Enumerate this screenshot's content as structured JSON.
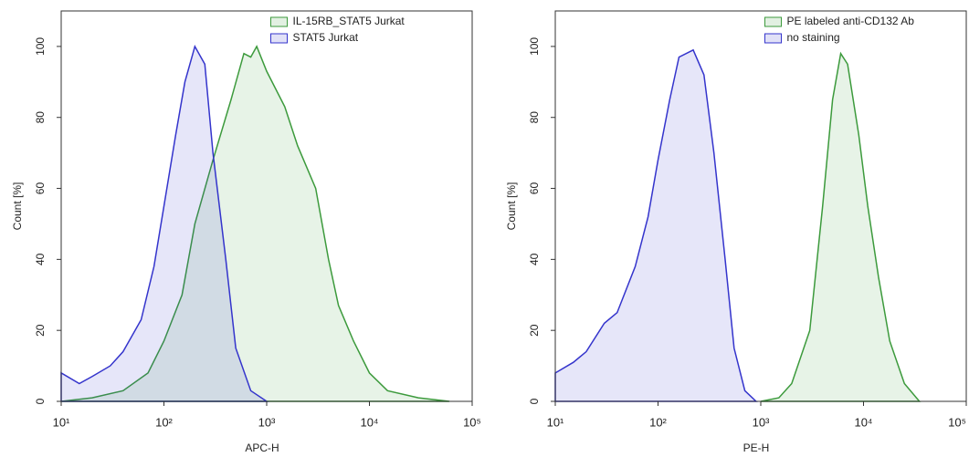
{
  "chart_data": [
    {
      "type": "area",
      "x_label": "APC-H",
      "y_label": "Count [%]",
      "xscale": "log",
      "xlim": [
        10,
        100000
      ],
      "ylim": [
        0,
        110
      ],
      "xticks": [
        {
          "value": 10,
          "label": "10¹"
        },
        {
          "value": 100,
          "label": "10²"
        },
        {
          "value": 1000,
          "label": "10³"
        },
        {
          "value": 10000,
          "label": "10⁴"
        },
        {
          "value": 100000,
          "label": "10⁵"
        }
      ],
      "yticks": [
        0,
        20,
        40,
        60,
        80,
        100
      ],
      "legend": "top-right",
      "series": [
        {
          "name": "IL-15RB_STAT5 Jurkat",
          "color": "#3c9a3c",
          "x": [
            10,
            20,
            40,
            70,
            100,
            150,
            200,
            300,
            450,
            600,
            700,
            800,
            1000,
            1500,
            2000,
            3000,
            4000,
            5000,
            7000,
            10000,
            15000,
            30000,
            60000
          ],
          "values": [
            0,
            1,
            3,
            8,
            17,
            30,
            50,
            68,
            85,
            98,
            97,
            100,
            93,
            83,
            72,
            60,
            40,
            27,
            17,
            8,
            3,
            1,
            0
          ]
        },
        {
          "name": "STAT5 Jurkat",
          "color": "#3434cc",
          "x": [
            10,
            15,
            20,
            30,
            40,
            60,
            80,
            100,
            130,
            160,
            200,
            250,
            300,
            400,
            500,
            700,
            1000
          ],
          "values": [
            8,
            5,
            7,
            10,
            14,
            23,
            38,
            55,
            75,
            90,
            100,
            95,
            70,
            40,
            15,
            3,
            0
          ]
        }
      ]
    },
    {
      "type": "area",
      "x_label": "PE-H",
      "y_label": "Count [%]",
      "xscale": "log",
      "xlim": [
        10,
        100000
      ],
      "ylim": [
        0,
        110
      ],
      "xticks": [
        {
          "value": 10,
          "label": "10¹"
        },
        {
          "value": 100,
          "label": "10²"
        },
        {
          "value": 1000,
          "label": "10³"
        },
        {
          "value": 10000,
          "label": "10⁴"
        },
        {
          "value": 100000,
          "label": "10⁵"
        }
      ],
      "yticks": [
        0,
        20,
        40,
        60,
        80,
        100
      ],
      "legend": "top-right",
      "series": [
        {
          "name": "PE labeled anti-CD132 Ab",
          "color": "#3c9a3c",
          "x": [
            1000,
            1500,
            2000,
            3000,
            4000,
            5000,
            6000,
            7000,
            9000,
            11000,
            14000,
            18000,
            25000,
            35000
          ],
          "values": [
            0,
            1,
            5,
            20,
            55,
            85,
            98,
            95,
            75,
            55,
            35,
            17,
            5,
            0
          ]
        },
        {
          "name": "no staining",
          "color": "#3434cc",
          "x": [
            10,
            15,
            20,
            30,
            40,
            60,
            80,
            100,
            130,
            160,
            220,
            280,
            350,
            450,
            550,
            700,
            900
          ],
          "values": [
            8,
            11,
            14,
            22,
            25,
            38,
            52,
            68,
            85,
            97,
            99,
            92,
            70,
            40,
            15,
            3,
            0
          ]
        }
      ]
    }
  ]
}
